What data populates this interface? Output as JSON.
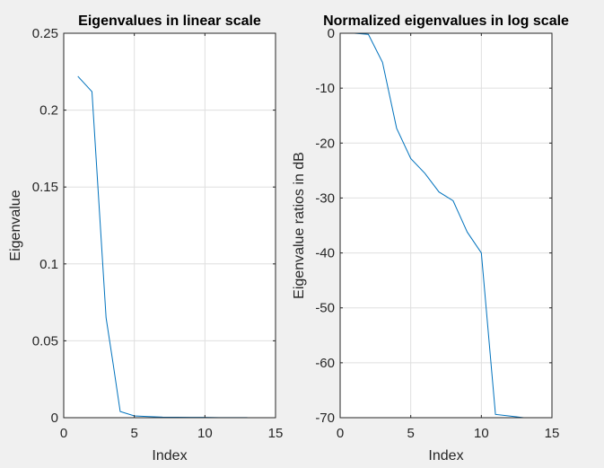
{
  "chart_data": [
    {
      "type": "line",
      "title": "Eigenvalues in linear scale",
      "xlabel": "Index",
      "ylabel": "Eigenvalue",
      "xlim": [
        0,
        15
      ],
      "ylim": [
        0,
        0.25
      ],
      "xticks": [
        0,
        5,
        10,
        15
      ],
      "xtick_labels": [
        "0",
        "5",
        "10",
        "15"
      ],
      "yticks": [
        0,
        0.05,
        0.1,
        0.15,
        0.2,
        0.25
      ],
      "ytick_labels": [
        "0",
        "0.05",
        "0.1",
        "0.15",
        "0.2",
        "0.25"
      ],
      "grid": true,
      "color": "#0072bd",
      "series": [
        {
          "x": [
            1,
            2,
            3,
            3.5,
            4,
            5,
            6,
            7,
            8,
            9,
            10,
            11,
            12,
            13
          ],
          "y": [
            0.222,
            0.212,
            0.065,
            0.035,
            0.004,
            0.0012,
            0.0007,
            0.0004,
            0.0003,
            0.0002,
            0.0002,
            0.0001,
            0.0001,
            0.0001
          ]
        }
      ]
    },
    {
      "type": "line",
      "title": "Normalized eigenvalues in log scale",
      "xlabel": "Index",
      "ylabel": "Eigenvalue ratios in dB",
      "xlim": [
        0,
        15
      ],
      "ylim": [
        -70,
        0
      ],
      "xticks": [
        0,
        5,
        10,
        15
      ],
      "xtick_labels": [
        "0",
        "5",
        "10",
        "15"
      ],
      "yticks": [
        -70,
        -60,
        -50,
        -40,
        -30,
        -20,
        -10,
        0
      ],
      "ytick_labels": [
        "-70",
        "-60",
        "-50",
        "-40",
        "-30",
        "-20",
        "-10",
        "0"
      ],
      "grid": true,
      "color": "#0072bd",
      "series": [
        {
          "x": [
            1,
            2,
            3,
            4,
            5,
            6,
            7,
            8,
            9,
            10,
            11,
            12,
            13
          ],
          "y": [
            0,
            -0.2,
            -5.3,
            -17.3,
            -22.8,
            -25.5,
            -28.9,
            -30.5,
            -36.2,
            -40,
            -69.4,
            -69.7,
            -70
          ]
        }
      ]
    }
  ]
}
